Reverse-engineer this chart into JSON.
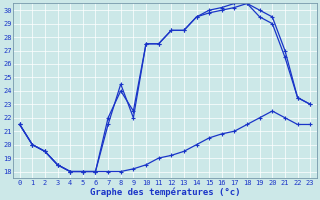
{
  "title": "Graphe des températures (°c)",
  "background_color": "#cce8e8",
  "line_color": "#1a35c8",
  "grid_color": "#ffffff",
  "xlim": [
    -0.5,
    23.5
  ],
  "ylim": [
    17.5,
    30.5
  ],
  "yticks": [
    18,
    19,
    20,
    21,
    22,
    23,
    24,
    25,
    26,
    27,
    28,
    29,
    30
  ],
  "xticks": [
    0,
    1,
    2,
    3,
    4,
    5,
    6,
    7,
    8,
    9,
    10,
    11,
    12,
    13,
    14,
    15,
    16,
    17,
    18,
    19,
    20,
    21,
    22,
    23
  ],
  "line1_x": [
    0,
    1,
    2,
    3,
    4,
    5,
    6,
    7,
    8,
    9,
    10,
    11,
    12,
    13,
    14,
    15,
    16,
    17,
    18,
    19,
    20,
    21,
    22,
    23
  ],
  "line1_y": [
    21.5,
    20.0,
    19.5,
    18.5,
    18.0,
    18.0,
    18.0,
    18.0,
    18.0,
    18.2,
    18.5,
    19.0,
    19.2,
    19.5,
    20.0,
    20.5,
    20.8,
    21.0,
    21.5,
    22.0,
    22.5,
    22.0,
    21.5,
    21.5
  ],
  "line2_x": [
    0,
    1,
    2,
    3,
    4,
    5,
    6,
    7,
    8,
    9,
    10,
    11,
    12,
    13,
    14,
    15,
    16,
    17,
    18,
    19,
    20,
    21,
    22,
    23
  ],
  "line2_y": [
    21.5,
    20.0,
    19.5,
    18.5,
    18.0,
    18.0,
    18.0,
    21.5,
    24.5,
    22.0,
    27.5,
    27.5,
    28.5,
    28.5,
    29.5,
    29.8,
    30.0,
    30.2,
    30.5,
    29.5,
    29.0,
    26.5,
    23.5,
    23.0
  ],
  "line3_x": [
    0,
    1,
    2,
    3,
    4,
    5,
    6,
    7,
    8,
    9,
    10,
    11,
    12,
    13,
    14,
    15,
    16,
    17,
    18,
    19,
    20,
    21,
    22,
    23
  ],
  "line3_y": [
    21.5,
    20.0,
    19.5,
    18.5,
    18.0,
    18.0,
    18.0,
    22.0,
    24.0,
    22.5,
    27.5,
    27.5,
    28.5,
    28.5,
    29.5,
    30.0,
    30.2,
    30.5,
    30.5,
    30.0,
    29.5,
    27.0,
    23.5,
    23.0
  ]
}
